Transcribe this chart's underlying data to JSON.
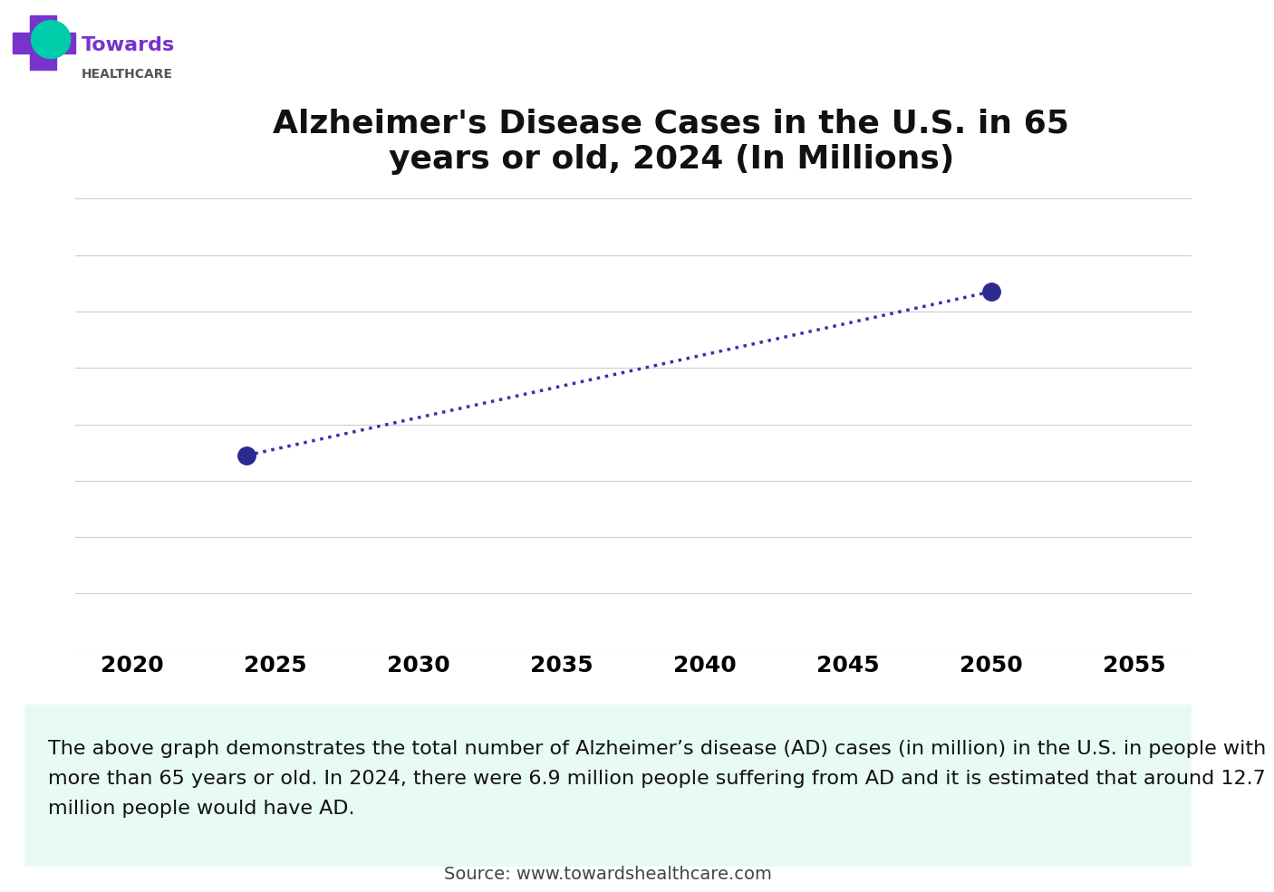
{
  "title": "Alzheimer's Disease Cases in the U.S. in 65\nyears or old, 2024 (In Millions)",
  "x_data": [
    2024,
    2050
  ],
  "y_data": [
    6.9,
    12.7
  ],
  "xlim": [
    2018,
    2057
  ],
  "ylim": [
    0,
    16
  ],
  "xticks": [
    2020,
    2025,
    2030,
    2035,
    2040,
    2045,
    2050,
    2055
  ],
  "yticks": [
    0,
    2,
    4,
    6,
    8,
    10,
    12,
    14,
    16
  ],
  "line_color": "#3333aa",
  "dot_color": "#2b2b8f",
  "background_color": "#ffffff",
  "grid_color": "#cccccc",
  "header_bar_purple": "#4422aa",
  "header_bar_teal": "#00ccaa",
  "description_text": "The above graph demonstrates the total number of Alzheimer’s disease (AD) cases (in million) in the U.S. in people with\nmore than 65 years or old. In 2024, there were 6.9 million people suffering from AD and it is estimated that around 12.7\nmillion people would have AD.",
  "description_bg": "#e8faf5",
  "source_text": "Source: www.towardshealthcare.com",
  "title_fontsize": 26,
  "tick_fontsize": 18,
  "desc_fontsize": 16,
  "source_fontsize": 14,
  "logo_towards_color": "#7733cc",
  "logo_healthcare_color": "#555555",
  "cross_color": "#7733cc",
  "teal_color": "#00ccaa"
}
